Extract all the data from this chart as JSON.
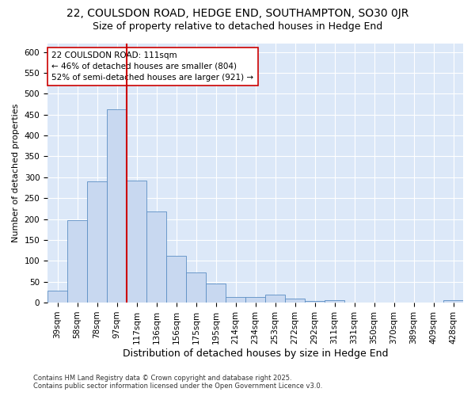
{
  "title": "22, COULSDON ROAD, HEDGE END, SOUTHAMPTON, SO30 0JR",
  "subtitle": "Size of property relative to detached houses in Hedge End",
  "xlabel": "Distribution of detached houses by size in Hedge End",
  "ylabel": "Number of detached properties",
  "categories": [
    "39sqm",
    "58sqm",
    "78sqm",
    "97sqm",
    "117sqm",
    "136sqm",
    "156sqm",
    "175sqm",
    "195sqm",
    "214sqm",
    "234sqm",
    "253sqm",
    "272sqm",
    "292sqm",
    "311sqm",
    "331sqm",
    "350sqm",
    "370sqm",
    "389sqm",
    "409sqm",
    "428sqm"
  ],
  "values": [
    28,
    197,
    290,
    462,
    292,
    218,
    112,
    73,
    45,
    13,
    13,
    20,
    10,
    4,
    6,
    0,
    0,
    0,
    0,
    0,
    5
  ],
  "bar_color": "#c8d8f0",
  "bar_edge_color": "#5b8ec4",
  "vline_x_index": 4,
  "vline_color": "#cc0000",
  "annotation_line1": "22 COULSDON ROAD: 111sqm",
  "annotation_line2": "← 46% of detached houses are smaller (804)",
  "annotation_line3": "52% of semi-detached houses are larger (921) →",
  "annotation_box_edge": "#cc0000",
  "annotation_box_face": "#ffffff",
  "ylim": [
    0,
    620
  ],
  "yticks": [
    0,
    50,
    100,
    150,
    200,
    250,
    300,
    350,
    400,
    450,
    500,
    550,
    600
  ],
  "footer_line1": "Contains HM Land Registry data © Crown copyright and database right 2025.",
  "footer_line2": "Contains public sector information licensed under the Open Government Licence v3.0.",
  "outer_bg_color": "#ffffff",
  "plot_bg_color": "#dce8f8",
  "grid_color": "#ffffff",
  "title_fontsize": 10,
  "subtitle_fontsize": 9,
  "ylabel_fontsize": 8,
  "xlabel_fontsize": 9,
  "tick_fontsize": 7.5
}
